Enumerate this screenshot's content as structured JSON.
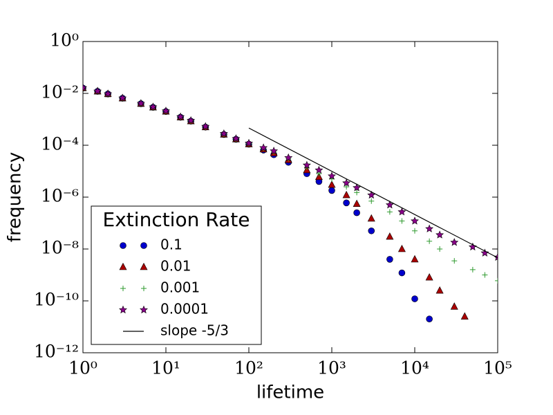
{
  "chart_data": {
    "type": "scatter",
    "log_x": true,
    "log_y": true,
    "x_label": "lifetime",
    "y_label": "frequency",
    "xlim": [
      1,
      100000
    ],
    "xticks": [
      {
        "value": 1,
        "label": "10⁰"
      },
      {
        "value": 10,
        "label": "10¹"
      },
      {
        "value": 100,
        "label": "10²"
      },
      {
        "value": 1000,
        "label": "10³"
      },
      {
        "value": 10000,
        "label": "10⁴"
      },
      {
        "value": 100000,
        "label": "10⁵"
      }
    ],
    "ylim": [
      1e-12,
      1
    ],
    "yticks": [
      {
        "value": 1e-12,
        "label": "10⁻¹²"
      },
      {
        "value": 1e-10,
        "label": "10⁻¹⁰"
      },
      {
        "value": 1e-08,
        "label": "10⁻⁸"
      },
      {
        "value": 1e-06,
        "label": "10⁻⁶"
      },
      {
        "value": 0.0001,
        "label": "10⁻⁴"
      },
      {
        "value": 0.01,
        "label": "10⁻²"
      },
      {
        "value": 1,
        "label": "10⁰"
      }
    ],
    "legend_title": "Extinction Rate",
    "legend": "lower left",
    "grid": false,
    "series": [
      {
        "name": "0.1",
        "color": "#0000cc",
        "marker": "o",
        "x": [
          1,
          1.5,
          2,
          3,
          5,
          7,
          10,
          15,
          20,
          30,
          50,
          70,
          100,
          150,
          200,
          300,
          500,
          700,
          1000,
          1500,
          2000,
          3000,
          5000,
          7000,
          10000,
          15000
        ],
        "values": [
          0.016,
          0.012,
          0.0095,
          0.0065,
          0.004,
          0.0029,
          0.002,
          0.0012,
          0.00085,
          0.0005,
          0.00026,
          0.00017,
          0.00011,
          6.5e-05,
          4.3e-05,
          2.2e-05,
          8e-06,
          4e-06,
          1.8e-06,
          6e-07,
          2.5e-07,
          5e-08,
          4e-09,
          1.2e-09,
          1.2e-10,
          2e-11
        ]
      },
      {
        "name": "0.01",
        "color": "#aa0000",
        "marker": "^",
        "x": [
          1,
          1.5,
          2,
          3,
          5,
          7,
          10,
          15,
          20,
          30,
          50,
          70,
          100,
          150,
          200,
          300,
          500,
          700,
          1000,
          1500,
          2000,
          3000,
          5000,
          7000,
          10000,
          15000,
          20000,
          30000,
          40000
        ],
        "values": [
          0.016,
          0.012,
          0.0095,
          0.0065,
          0.004,
          0.0029,
          0.002,
          0.0012,
          0.00085,
          0.0005,
          0.00026,
          0.00017,
          0.00011,
          7e-05,
          5e-05,
          2.7e-05,
          1.1e-05,
          6e-06,
          3e-06,
          1.2e-06,
          5.5e-07,
          1.5e-07,
          3e-08,
          1e-08,
          4e-09,
          8e-10,
          2.5e-10,
          6e-11,
          2.5e-11
        ]
      },
      {
        "name": "0.001",
        "color": "#2e9a2e",
        "marker": "+",
        "x": [
          1,
          1.5,
          2,
          3,
          5,
          7,
          10,
          15,
          20,
          30,
          50,
          70,
          100,
          150,
          200,
          300,
          500,
          700,
          1000,
          1500,
          2000,
          3000,
          5000,
          7000,
          10000,
          15000,
          20000,
          30000,
          50000,
          70000,
          100000
        ],
        "values": [
          0.017,
          0.0125,
          0.0098,
          0.0067,
          0.0041,
          0.003,
          0.0021,
          0.00125,
          0.00088,
          0.00052,
          0.00027,
          0.000175,
          0.000115,
          7.5e-05,
          5.5e-05,
          3e-05,
          1.4e-05,
          8e-06,
          5e-06,
          2.5e-06,
          1.5e-06,
          7e-07,
          2.7e-07,
          1.2e-07,
          5e-08,
          2e-08,
          1e-08,
          3.5e-09,
          1.6e-09,
          1e-09,
          6e-10
        ]
      },
      {
        "name": "0.0001",
        "color": "#880088",
        "marker": "*",
        "x": [
          1,
          1.5,
          2,
          3,
          5,
          7,
          10,
          15,
          20,
          30,
          50,
          70,
          100,
          150,
          200,
          300,
          500,
          700,
          1000,
          1500,
          2000,
          3000,
          5000,
          7000,
          10000,
          15000,
          20000,
          30000,
          50000,
          70000,
          100000
        ],
        "values": [
          0.0165,
          0.0122,
          0.0096,
          0.0066,
          0.0041,
          0.003,
          0.0021,
          0.00125,
          0.0009,
          0.00053,
          0.00028,
          0.00018,
          0.00012,
          8e-05,
          6e-05,
          3.3e-05,
          1.7e-05,
          1.1e-05,
          6.5e-06,
          3.5e-06,
          2.3e-06,
          1.2e-06,
          5e-07,
          2.7e-07,
          1.2e-07,
          6e-08,
          3.5e-08,
          1.8e-08,
          1.2e-08,
          7e-09,
          4.8e-09
        ]
      },
      {
        "name": "slope -5/3",
        "color": "#000000",
        "linestyle": "solid",
        "x": [
          100,
          100000
        ],
        "values": [
          0.00046,
          4.6e-09
        ]
      }
    ]
  }
}
